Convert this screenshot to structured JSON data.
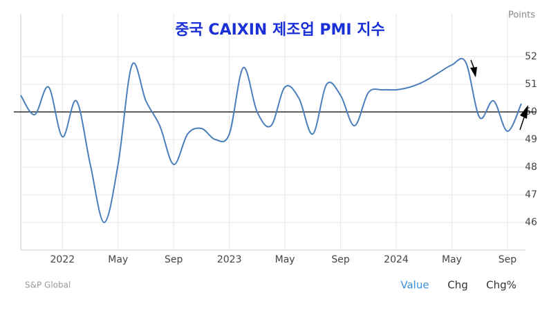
{
  "chart_data": {
    "type": "line",
    "title": "중국 CAIXIN 제조업 PMI 지수",
    "y_label": "Points",
    "source": "S&P Global",
    "tabs": [
      "Value",
      "Chg",
      "Chg%"
    ],
    "categories": [
      null,
      null,
      null,
      "2022",
      null,
      null,
      null,
      "May",
      null,
      null,
      null,
      "Sep",
      null,
      null,
      null,
      "2023",
      null,
      null,
      null,
      "May",
      null,
      null,
      null,
      "Sep",
      null,
      null,
      null,
      "2024",
      null,
      null,
      null,
      "May",
      null,
      null,
      null,
      "Sep",
      null
    ],
    "series": [
      {
        "name": "Value",
        "color": "#4a7ebb",
        "values": [
          50.6,
          49.9,
          50.9,
          49.1,
          50.4,
          48.1,
          46.0,
          48.1,
          51.7,
          50.4,
          49.5,
          48.1,
          49.2,
          49.4,
          49.0,
          49.2,
          51.6,
          50.0,
          49.5,
          50.9,
          50.5,
          49.2,
          51.0,
          50.6,
          49.5,
          50.7,
          50.8,
          50.8,
          50.9,
          51.1,
          51.4,
          51.7,
          51.8,
          49.8,
          50.4,
          49.3,
          50.3
        ]
      }
    ],
    "ylim": [
      45,
      53.55
    ],
    "yticks": [
      46,
      47,
      48,
      49,
      50,
      51,
      52
    ],
    "reference_line": 50,
    "grid": true
  }
}
